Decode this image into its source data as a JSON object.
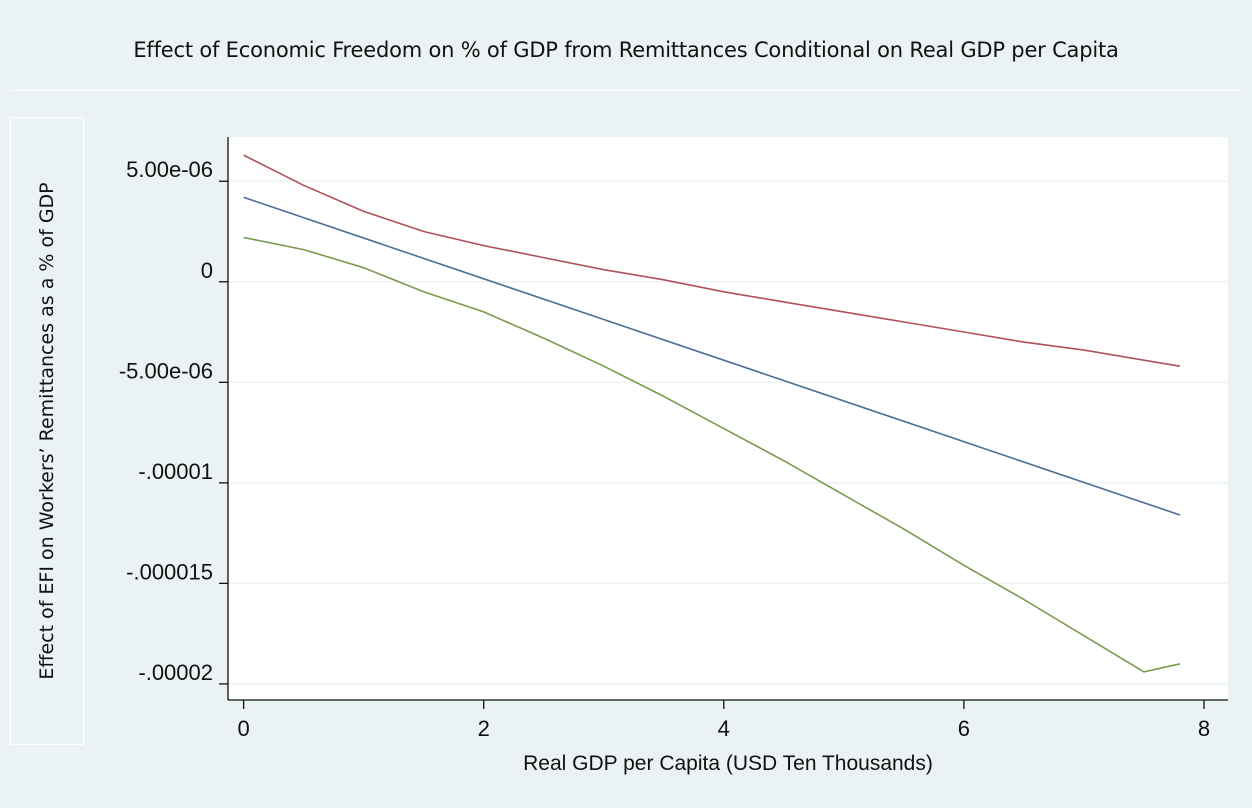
{
  "chart_data": {
    "type": "line",
    "title": "Effect of Economic Freedom on % of GDP from Remittances Conditional on Real GDP per Capita",
    "xlabel": "Real GDP per Capita (USD Ten Thousands)",
    "ylabel": "Effect of EFI on Workers’ Remittances as a % of GDP",
    "xlim": [
      -0.13,
      8.2
    ],
    "ylim": [
      -2.08e-05,
      7.2e-06
    ],
    "x_ticks": [
      {
        "value": 0,
        "label": "0"
      },
      {
        "value": 2,
        "label": "2"
      },
      {
        "value": 4,
        "label": "4"
      },
      {
        "value": 6,
        "label": "6"
      },
      {
        "value": 8,
        "label": "8"
      }
    ],
    "y_ticks": [
      {
        "value": 5e-06,
        "label": "5.00e-06"
      },
      {
        "value": 0,
        "label": "0"
      },
      {
        "value": -5e-06,
        "label": "-5.00e-06"
      },
      {
        "value": -1e-05,
        "label": "-.00001"
      },
      {
        "value": -1.5e-05,
        "label": "-.000015"
      },
      {
        "value": -2e-05,
        "label": "-.00002"
      }
    ],
    "grid": true,
    "series": [
      {
        "color": "#b0505a",
        "x": [
          0,
          0.5,
          1.0,
          1.5,
          2.0,
          2.5,
          3.0,
          3.5,
          4.0,
          4.5,
          5.0,
          5.5,
          6.0,
          6.5,
          7.0,
          7.5,
          7.8
        ],
        "y": [
          6.3e-06,
          4.8e-06,
          3.5e-06,
          2.5e-06,
          1.8e-06,
          1.2e-06,
          6e-07,
          1e-07,
          -5e-07,
          -1e-06,
          -1.5e-06,
          -2e-06,
          -2.5e-06,
          -3e-06,
          -3.4e-06,
          -3.9e-06,
          -4.2e-06
        ]
      },
      {
        "color": "#4a6e96",
        "x": [
          0,
          7.8
        ],
        "y": [
          4.2e-06,
          -1.16e-05
        ]
      },
      {
        "color": "#7a9a4e",
        "x": [
          0,
          0.5,
          1.0,
          1.5,
          2.0,
          2.5,
          3.0,
          3.5,
          4.0,
          4.5,
          5.0,
          5.5,
          6.0,
          6.5,
          7.0,
          7.5,
          7.8
        ],
        "y": [
          2.2e-06,
          1.6e-06,
          7e-07,
          -5e-07,
          -1.5e-06,
          -2.8e-06,
          -4.2e-06,
          -5.7e-06,
          -7.3e-06,
          -8.9e-06,
          -1.06e-05,
          -1.23e-05,
          -1.41e-05,
          -1.58e-05,
          -1.76e-05,
          -1.94e-05,
          -1.9e-05
        ]
      }
    ]
  }
}
